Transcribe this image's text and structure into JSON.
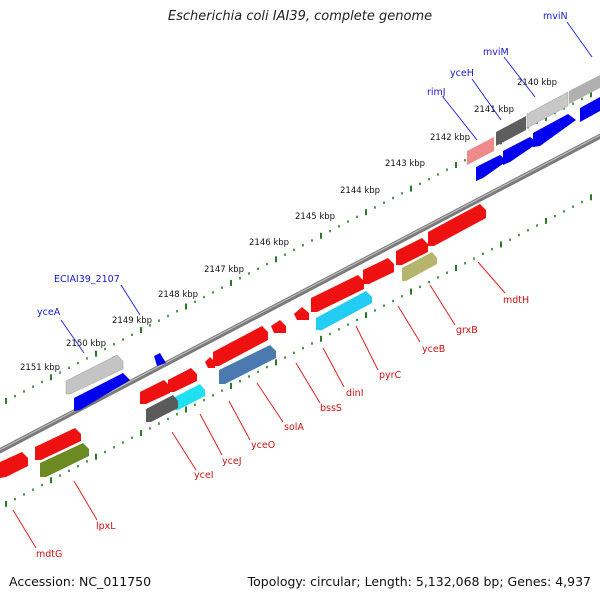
{
  "title": "Escherichia coli IAI39, complete genome",
  "footer": {
    "accession": "Accession: NC_011750",
    "summary": "Topology: circular; Length: 5,132,068 bp; Genes: 4,937"
  },
  "colors": {
    "forward_label": "#1a1acc",
    "reverse_label": "#cc1111",
    "tick": "#2a7a2a",
    "backbone": "#777777"
  },
  "kbp_labels": [
    "2140 kbp",
    "2141 kbp",
    "2142 kbp",
    "2143 kbp",
    "2144 kbp",
    "2145 kbp",
    "2146 kbp",
    "2147 kbp",
    "2148 kbp",
    "2149 kbp",
    "2150 kbp",
    "2151 kbp"
  ],
  "forward_gene_labels": [
    "mviN",
    "mviM",
    "yceH",
    "rimJ",
    "ECIAI39_2107",
    "yceA"
  ],
  "reverse_gene_labels": [
    "mdtH",
    "grxB",
    "yceB",
    "pyrC",
    "dinI",
    "bssS",
    "solA",
    "yceO",
    "yceJ",
    "yceI",
    "lpxL",
    "mdtG"
  ]
}
